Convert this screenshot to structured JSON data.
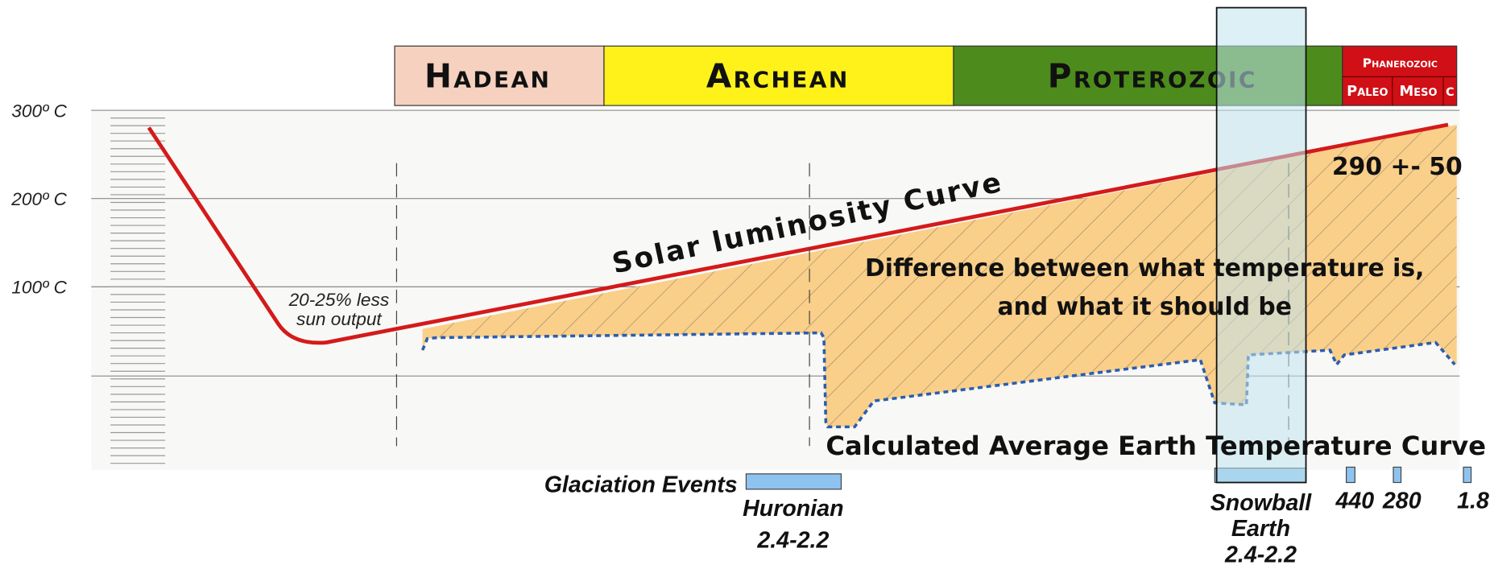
{
  "eons": [
    {
      "label": "Hadean"
    },
    {
      "label": "Archean"
    },
    {
      "label": "Proterozoic"
    },
    {
      "label": "Phanerozoic",
      "eras": [
        "Paleo",
        "Meso",
        "C"
      ]
    }
  ],
  "axis_labels": [
    "300º C",
    "200º C",
    "100º C"
  ],
  "annotations": {
    "solar_curve": "Solar luminosity Curve",
    "less_output": [
      "20-25% less",
      "sun output"
    ],
    "range": "290 +- 50",
    "difference": [
      "Difference between what temperature is,",
      "and what it should be"
    ],
    "earth_curve": "Calculated Average Earth Temperature Curve"
  },
  "glaciation": {
    "title": "Glaciation Events",
    "huronian": [
      "Huronian",
      "2.4-2.2"
    ],
    "snowball": [
      "Snowball",
      "Earth",
      "2.4-2.2"
    ],
    "others": [
      "440",
      "280",
      "1.8"
    ]
  }
}
